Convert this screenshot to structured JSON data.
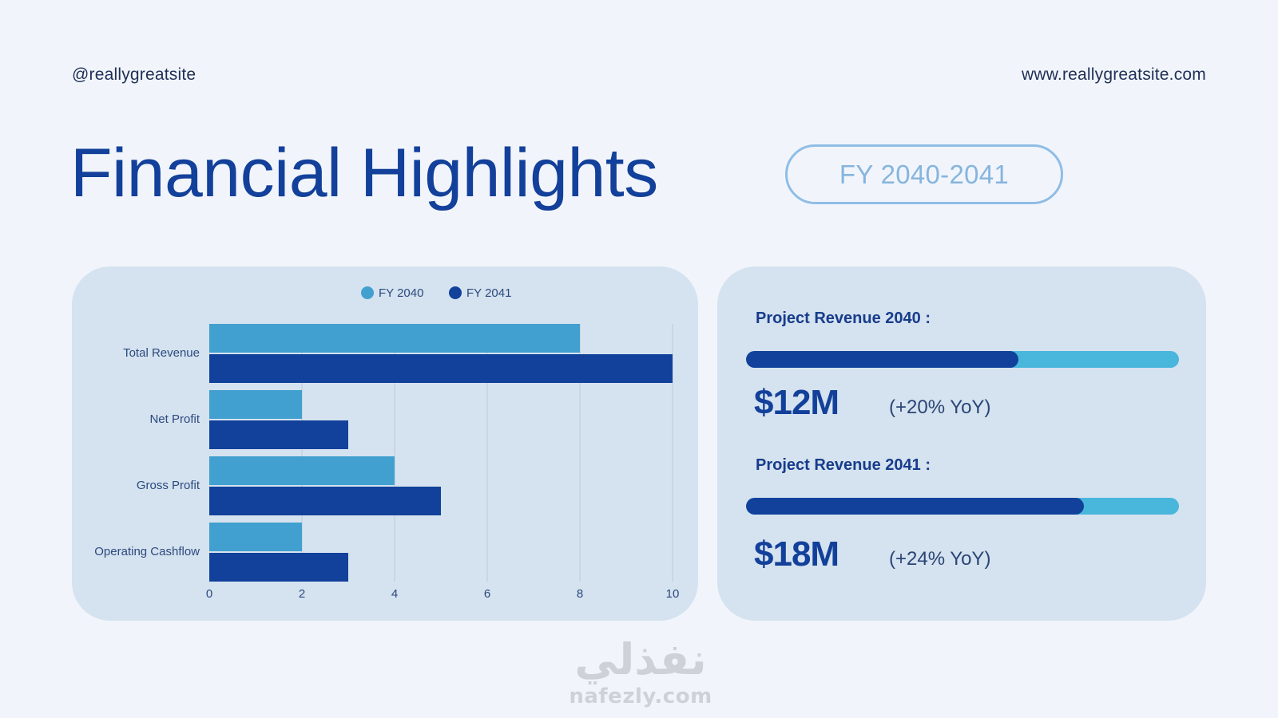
{
  "header": {
    "handle": "@reallygreatsite",
    "website": "www.reallygreatsite.com"
  },
  "title": "Financial Highlights",
  "period_badge": "FY 2040-2041",
  "chart_data": {
    "type": "bar",
    "orientation": "horizontal",
    "categories": [
      "Total Revenue",
      "Net Profit",
      "Gross Profit",
      "Operating Cashflow"
    ],
    "series": [
      {
        "name": "FY 2040",
        "values": [
          8,
          2,
          4,
          2
        ],
        "color": "#41a0cf"
      },
      {
        "name": "FY 2041",
        "values": [
          10,
          3,
          5,
          3
        ],
        "color": "#11419a"
      }
    ],
    "xlim": [
      0,
      10
    ],
    "xticks": [
      "0",
      "2",
      "4",
      "6",
      "8",
      "10"
    ],
    "xlabel": "",
    "ylabel": "",
    "title": "",
    "grid": "vertical",
    "legend": "top-center"
  },
  "revenue": [
    {
      "title": "Project Revenue 2040 :",
      "value": "$12M",
      "yoy": "(+20% YoY)",
      "progress": 0.63
    },
    {
      "title": "Project Revenue 2041 :",
      "value": "$18M",
      "yoy": "(+24% YoY)",
      "progress": 0.78
    }
  ],
  "colors": {
    "track": "#49b6dc",
    "fill": "#11419a",
    "panel": "#d5e2ef",
    "background": "#f1f5fb"
  },
  "watermark": {
    "arabic": "نفذلي",
    "latin": "nafezly.com"
  }
}
